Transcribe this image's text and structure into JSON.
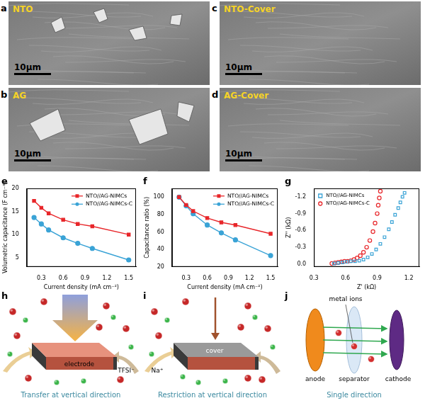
{
  "sem_images": [
    {
      "panel": "a",
      "label": "NTO",
      "scale_bar": "10μm"
    },
    {
      "panel": "b",
      "label": "AG",
      "scale_bar": "10μm"
    },
    {
      "panel": "c",
      "label": "NTO-Cover",
      "scale_bar": "10μm"
    },
    {
      "panel": "d",
      "label": "AG-Cover",
      "scale_bar": "10μm"
    }
  ],
  "chart_data": [
    {
      "panel": "e",
      "type": "line",
      "x_label": "Current density (mA cm⁻²)",
      "y_label": "Volumetric capacitance (F cm⁻³)",
      "x": [
        0.2,
        0.3,
        0.4,
        0.6,
        0.8,
        1.0,
        1.5
      ],
      "series": [
        {
          "name": "NTO//AG-NIMCs",
          "color": "#e8262a",
          "marker": "square",
          "values": [
            17.3,
            15.8,
            14.6,
            13.2,
            12.3,
            11.8,
            10.0
          ]
        },
        {
          "name": "NTO//AG-NIMCs-C",
          "color": "#3aa3d6",
          "marker": "circle",
          "values": [
            13.7,
            12.3,
            11.0,
            9.3,
            8.1,
            7.0,
            4.5
          ]
        }
      ],
      "xlim": [
        0.1,
        1.6
      ],
      "xticks": [
        0.3,
        0.6,
        0.9,
        1.2,
        1.5
      ],
      "ylim": [
        3,
        20
      ],
      "yticks": [
        5,
        10,
        15,
        20
      ],
      "grid": false,
      "legend": "upper right"
    },
    {
      "panel": "f",
      "type": "line",
      "x_label": "Current density (mA cm⁻²)",
      "y_label": "Capacitance ratio (%)",
      "x": [
        0.2,
        0.3,
        0.4,
        0.6,
        0.8,
        1.0,
        1.5
      ],
      "series": [
        {
          "name": "NTO//AG-NIMCs",
          "color": "#e8262a",
          "marker": "square",
          "values": [
            100,
            91,
            84,
            76,
            71,
            68,
            58
          ]
        },
        {
          "name": "NTO//AG-NIMCs-C",
          "color": "#3aa3d6",
          "marker": "circle",
          "values": [
            100,
            90,
            81,
            68,
            59,
            51,
            33
          ]
        }
      ],
      "xlim": [
        0.1,
        1.6
      ],
      "xticks": [
        0.3,
        0.6,
        0.9,
        1.2,
        1.5
      ],
      "ylim": [
        20,
        110
      ],
      "yticks": [
        20,
        40,
        60,
        80,
        100
      ],
      "grid": false,
      "legend": "upper right"
    },
    {
      "panel": "g",
      "type": "scatter",
      "x_label": "Z' (kΩ)",
      "y_label": "Z'' (kΩ)",
      "series": [
        {
          "name": "NTO//AG-NIMCs",
          "color": "#3aa3d6",
          "marker": "open_square",
          "x": [
            0.49,
            0.53,
            0.57,
            0.61,
            0.65,
            0.69,
            0.73,
            0.77,
            0.81,
            0.85,
            0.89,
            0.93,
            0.97,
            1.01,
            1.04,
            1.07,
            1.1,
            1.12,
            1.14,
            1.16
          ],
          "values": [
            -0.01,
            -0.02,
            -0.03,
            -0.04,
            -0.05,
            -0.05,
            -0.06,
            -0.08,
            -0.12,
            -0.18,
            -0.26,
            -0.36,
            -0.48,
            -0.62,
            -0.75,
            -0.88,
            -1.0,
            -1.1,
            -1.2,
            -1.27
          ]
        },
        {
          "name": "NTO//AG-NIMCs-C",
          "color": "#e8262a",
          "marker": "open_circle",
          "x": [
            0.47,
            0.5,
            0.53,
            0.56,
            0.59,
            0.62,
            0.65,
            0.68,
            0.71,
            0.74,
            0.77,
            0.8,
            0.83,
            0.86,
            0.88,
            0.9,
            0.91,
            0.92,
            0.93
          ],
          "values": [
            -0.01,
            -0.02,
            -0.03,
            -0.04,
            -0.05,
            -0.05,
            -0.06,
            -0.08,
            -0.11,
            -0.15,
            -0.21,
            -0.3,
            -0.42,
            -0.58,
            -0.73,
            -0.9,
            -1.05,
            -1.18,
            -1.3
          ]
        }
      ],
      "xlim": [
        0.3,
        1.3
      ],
      "xticks": [
        0.3,
        0.6,
        0.9,
        1.2
      ],
      "ylim": [
        0.05,
        -1.35
      ],
      "yticks": [
        {
          "value": 0,
          "label": "0.0"
        },
        -0.3,
        -0.6,
        -0.9,
        -1.2
      ],
      "grid": false,
      "legend": "upper left"
    }
  ],
  "schematics": [
    {
      "panel": "h",
      "labels": {
        "electrode": "electrode",
        "ion": "TFSI⁻"
      },
      "caption": "Transfer at vertical direction"
    },
    {
      "panel": "i",
      "labels": {
        "cover": "cover",
        "ion": "Na⁺"
      },
      "caption": "Restriction at vertical direction"
    },
    {
      "panel": "j",
      "labels": {
        "ions": "metal ions",
        "anode": "anode",
        "separator": "separator",
        "cathode": "cathode"
      },
      "caption": "Single direction"
    }
  ]
}
